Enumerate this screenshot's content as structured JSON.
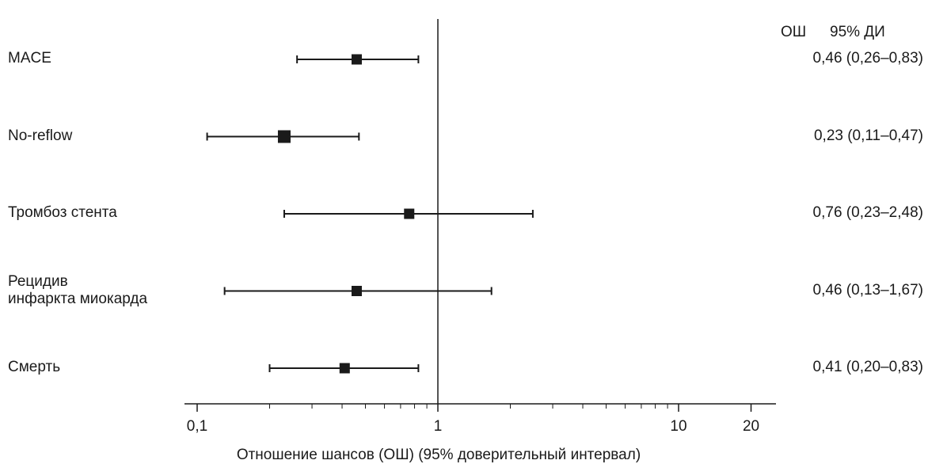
{
  "chart_data": {
    "type": "forest",
    "xscale": "log",
    "xlim": [
      0.1,
      25
    ],
    "xlabel": "Отношение шансов (ОШ) (95% доверительный интервал)",
    "ticks": [
      {
        "value": 0.1,
        "label": "0,1"
      },
      {
        "value": 1,
        "label": "1"
      },
      {
        "value": 10,
        "label": "10"
      },
      {
        "value": 20,
        "label": "20"
      }
    ],
    "minor_ticks": [
      0.2,
      0.3,
      0.4,
      0.5,
      0.6,
      0.7,
      0.8,
      0.9,
      2,
      3,
      4,
      5,
      6,
      7,
      8,
      9
    ],
    "reference_line": 1,
    "header": {
      "or": "ОШ",
      "ci": "95% ДИ"
    },
    "rows": [
      {
        "label": [
          "MACE"
        ],
        "or": 0.46,
        "lo": 0.26,
        "hi": 0.83,
        "text": "0,46 (0,26–0,83)"
      },
      {
        "label": [
          "No-reflow"
        ],
        "or": 0.23,
        "lo": 0.11,
        "hi": 0.47,
        "text": "0,23 (0,11–0,47)"
      },
      {
        "label": [
          "Тромбоз стента"
        ],
        "or": 0.76,
        "lo": 0.23,
        "hi": 2.48,
        "text": "0,76 (0,23–2,48)"
      },
      {
        "label": [
          "Рецидив",
          "инфаркта миокарда"
        ],
        "or": 0.46,
        "lo": 0.13,
        "hi": 1.67,
        "text": "0,46 (0,13–1,67)"
      },
      {
        "label": [
          "Смерть"
        ],
        "or": 0.41,
        "lo": 0.2,
        "hi": 0.83,
        "text": "0,41 (0,20–0,83)"
      }
    ],
    "colors": {
      "ink": "#1a1a1a"
    }
  }
}
